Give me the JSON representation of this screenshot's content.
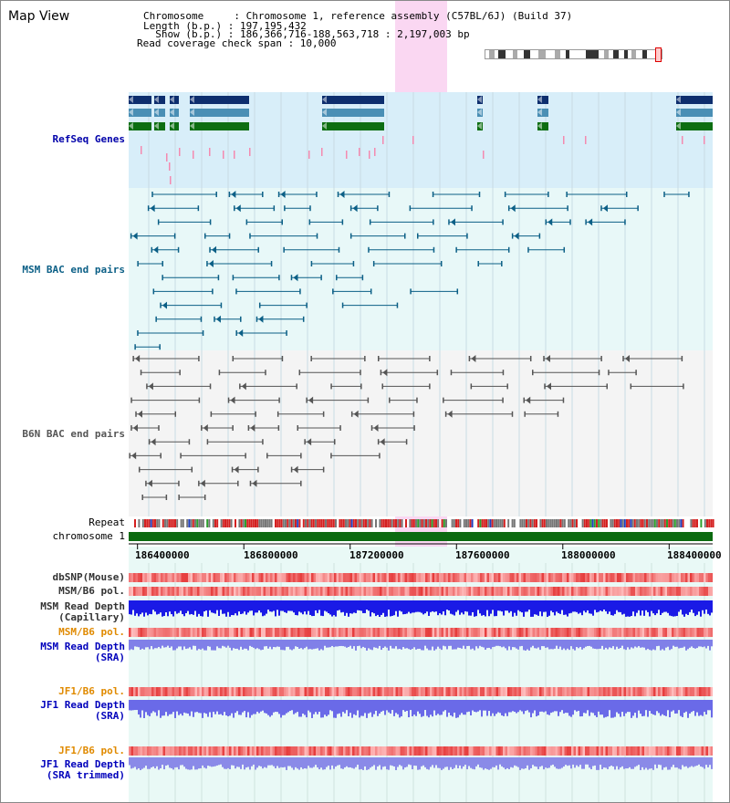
{
  "title": "Map View",
  "header": {
    "line1": "Chromosome     : Chromosome 1, reference assembly (C57BL/6J) (Build 37)",
    "line2": "Length (b.p.) : 197,195,432",
    "line3": "  Show (b.p.) : 186,366,716-188,563,718 : 2,197,003 bp",
    "line4": "Read coverage check span : 10,000"
  },
  "tracks": [
    {
      "label": "RefSeq Genes",
      "color": "#0000aa"
    },
    {
      "label": "MSM BAC end pairs",
      "color": "#0b5f86"
    },
    {
      "label": "B6N BAC end pairs",
      "color": "#555555"
    },
    {
      "label": "Repeat",
      "color": "#000000"
    },
    {
      "label": "chromosome 1",
      "color": "#000000"
    },
    {
      "label": "dbSNP(Mouse)",
      "color": "#333333"
    },
    {
      "label": "MSM/B6 pol.",
      "color": "#333333"
    },
    {
      "label": "MSM Read Depth\n(Capillary)",
      "color": "#333333"
    },
    {
      "label": "MSM/B6 pol.",
      "color": "#e08a00"
    },
    {
      "label": "MSM Read Depth\n(SRA)",
      "color": "#0000bb"
    },
    {
      "label": "JF1/B6 pol.",
      "color": "#e08a00"
    },
    {
      "label": "JF1 Read Depth\n(SRA)",
      "color": "#0000bb"
    },
    {
      "label": "JF1/B6 pol.",
      "color": "#e08a00"
    },
    {
      "label": "JF1 Read Depth\n(SRA trimmed)",
      "color": "#0000bb"
    }
  ],
  "axis": {
    "ticks": [
      "186400000",
      "186800000",
      "187200000",
      "187600000",
      "188000000",
      "188400000"
    ]
  },
  "view": {
    "start": 186366716,
    "end": 188563718,
    "highlight_start": 187279000,
    "highlight_end": 187475000
  },
  "icons": {
    "ideogram": "chromosome-ideogram-icon"
  }
}
